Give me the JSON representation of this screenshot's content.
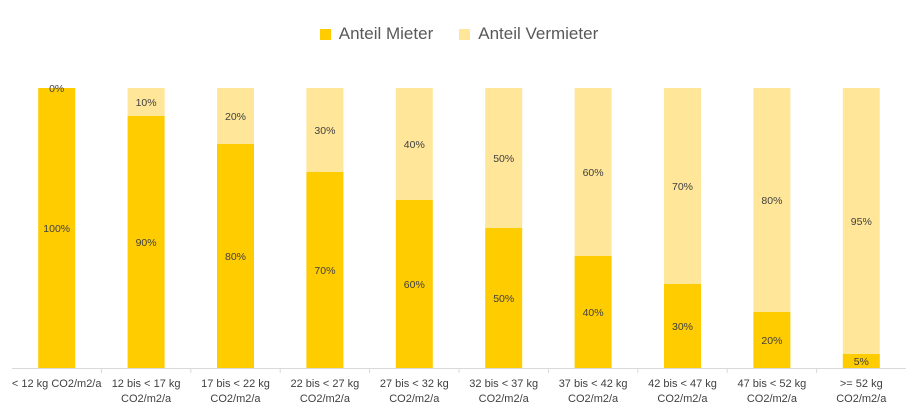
{
  "colors": {
    "mieter": "#FFCC00",
    "vermieter": "#FFE699",
    "axis": "#D9D9D9",
    "text": "#404040"
  },
  "chart_data": {
    "type": "bar",
    "stacked": true,
    "percent": true,
    "legend_position": "top",
    "grid": false,
    "ylim": [
      0,
      100
    ],
    "categories": [
      [
        "< 12 kg CO2/m2/a"
      ],
      [
        "12 bis < 17 kg",
        "CO2/m2/a"
      ],
      [
        "17 bis < 22 kg",
        "CO2/m2/a"
      ],
      [
        "22 bis < 27 kg",
        "CO2/m2/a"
      ],
      [
        "27 bis < 32 kg",
        "CO2/m2/a"
      ],
      [
        "32 bis < 37 kg",
        "CO2/m2/a"
      ],
      [
        "37 bis < 42 kg",
        "CO2/m2/a"
      ],
      [
        "42 bis < 47 kg",
        "CO2/m2/a"
      ],
      [
        "47 bis < 52 kg",
        "CO2/m2/a"
      ],
      [
        ">= 52 kg",
        "CO2/m2/a"
      ]
    ],
    "series": [
      {
        "name": "Anteil Mieter",
        "values": [
          100,
          90,
          80,
          70,
          60,
          50,
          40,
          30,
          20,
          5
        ],
        "labels": [
          "100%",
          "90%",
          "80%",
          "70%",
          "60%",
          "50%",
          "40%",
          "30%",
          "20%",
          "5%"
        ]
      },
      {
        "name": "Anteil Vermieter",
        "values": [
          0,
          10,
          20,
          30,
          40,
          50,
          60,
          70,
          80,
          95
        ],
        "labels": [
          "0%",
          "10%",
          "20%",
          "30%",
          "40%",
          "50%",
          "60%",
          "70%",
          "80%",
          "95%"
        ]
      }
    ]
  }
}
